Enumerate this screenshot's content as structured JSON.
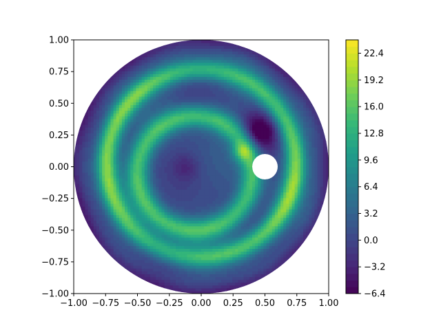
{
  "chart_data": {
    "type": "heatmap",
    "subtype": "filled-contour",
    "title": "",
    "xlabel": "",
    "ylabel": "",
    "xlim": [
      -1.0,
      1.0
    ],
    "ylim": [
      -1.0,
      1.0
    ],
    "x_ticks": [
      -1.0,
      -0.75,
      -0.5,
      -0.25,
      0.0,
      0.25,
      0.5,
      0.75,
      1.0
    ],
    "y_ticks": [
      -1.0,
      -0.75,
      -0.5,
      -0.25,
      0.0,
      0.25,
      0.5,
      0.75,
      1.0
    ],
    "x_tick_labels": [
      "−1.00",
      "−0.75",
      "−0.50",
      "−0.25",
      "0.00",
      "0.25",
      "0.50",
      "0.75",
      "1.00"
    ],
    "y_tick_labels": [
      "−1.00",
      "−0.75",
      "−0.50",
      "−0.25",
      "0.00",
      "0.25",
      "0.50",
      "0.75",
      "1.00"
    ],
    "colormap": "viridis",
    "colorbar": {
      "vmin": -6.4,
      "vmax": 24.0,
      "ticks": [
        -6.4,
        -3.2,
        0.0,
        3.2,
        6.4,
        9.6,
        12.8,
        16.0,
        19.2,
        22.4
      ],
      "tick_labels": [
        "−6.4",
        "−3.2",
        "0.0",
        "3.2",
        "6.4",
        "9.6",
        "12.8",
        "16.0",
        "19.2",
        "22.4"
      ]
    },
    "domain": {
      "shape": "annulus-like disk with hole",
      "outer_circle": {
        "cx": 0.0,
        "cy": 0.0,
        "r": 1.0
      },
      "hole": {
        "cx": 0.5,
        "cy": 0.0,
        "r": 0.1
      }
    },
    "features": [
      {
        "name": "outer bright ring",
        "center": [
          0.0,
          0.0
        ],
        "radius": 0.75,
        "value": 18.5
      },
      {
        "name": "inner bright ring",
        "center": [
          -0.05,
          -0.05
        ],
        "radius": 0.45,
        "value": 16.0
      },
      {
        "name": "core low region",
        "center": [
          -0.1,
          0.0
        ],
        "radius": 0.15,
        "value": 3.0
      },
      {
        "name": "outer rim low",
        "radius": 1.0,
        "value": 1.0
      },
      {
        "name": "dark patch near hole",
        "center": [
          0.45,
          0.3
        ],
        "value": -1.0
      }
    ]
  }
}
